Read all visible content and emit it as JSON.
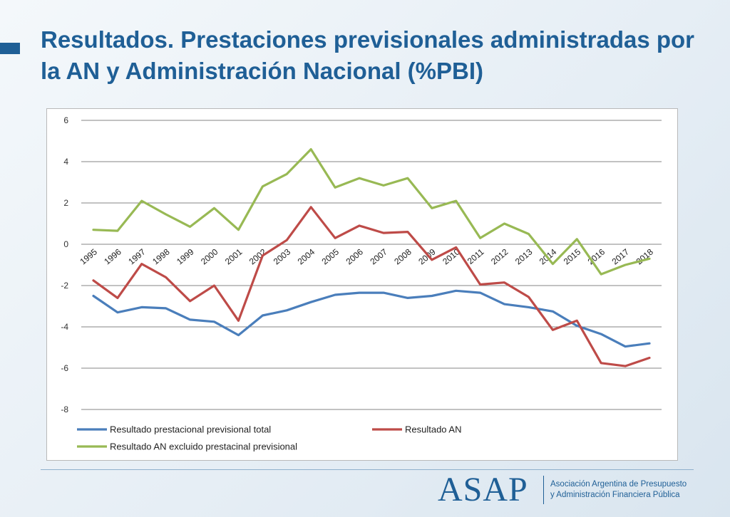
{
  "slide": {
    "title": "Resultados. Prestaciones previsionales administradas por la AN y Administración Nacional (%PBI)"
  },
  "footer": {
    "logo_mark": "ASAP",
    "logo_line1": "Asociación Argentina de Presupuesto",
    "logo_line2": "y Administración Financiera Pública"
  },
  "chart_data": {
    "type": "line",
    "title": "",
    "xlabel": "",
    "ylabel": "",
    "categories": [
      "1995",
      "1996",
      "1997",
      "1998",
      "1999",
      "2000",
      "2001",
      "2002",
      "2003",
      "2004",
      "2005",
      "2006",
      "2007",
      "2008",
      "2009",
      "2010",
      "2011",
      "2012",
      "2013",
      "2014",
      "2015",
      "2016",
      "2017",
      "2018"
    ],
    "ylim": [
      -8,
      6
    ],
    "yticks": [
      6,
      4,
      2,
      0,
      -2,
      -4,
      -6,
      -8
    ],
    "grid": true,
    "legend_position": "bottom",
    "series": [
      {
        "name": "Resultado prestacional previsional total",
        "color": "#4a7ebb",
        "values": [
          -2.5,
          -3.3,
          -3.05,
          -3.1,
          -3.65,
          -3.75,
          -4.4,
          -3.45,
          -3.2,
          -2.8,
          -2.45,
          -2.35,
          -2.35,
          -2.6,
          -2.5,
          -2.25,
          -2.35,
          -2.9,
          -3.05,
          -3.25,
          -3.95,
          -4.35,
          -4.95,
          -4.8
        ]
      },
      {
        "name": "Resultado AN",
        "color": "#be4b48",
        "values": [
          -1.75,
          -2.6,
          -0.95,
          -1.6,
          -2.75,
          -2.0,
          -3.7,
          -0.55,
          0.2,
          1.8,
          0.3,
          0.9,
          0.55,
          0.6,
          -0.75,
          -0.15,
          -1.95,
          -1.85,
          -2.55,
          -4.15,
          -3.7,
          -5.75,
          -5.9,
          -5.5
        ]
      },
      {
        "name": "Resultado AN excluido prestacinal previsional",
        "color": "#98b954",
        "values": [
          0.7,
          0.65,
          2.1,
          1.45,
          0.85,
          1.75,
          0.7,
          2.8,
          3.4,
          4.6,
          2.75,
          3.2,
          2.85,
          3.2,
          1.75,
          2.1,
          0.3,
          1.0,
          0.5,
          -0.95,
          0.25,
          -1.45,
          -1.0,
          -0.7
        ]
      }
    ]
  }
}
